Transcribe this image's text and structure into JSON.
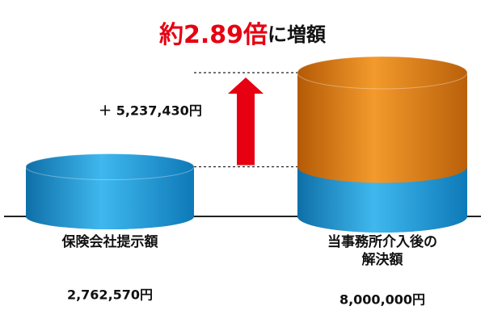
{
  "chart_data": {
    "type": "stacked-cylinder",
    "title_parts": [
      "約2.89倍",
      "に増額"
    ],
    "title_colors": [
      "#e60012",
      "#111111"
    ],
    "categories": [
      "保険会社提示額",
      "当事務所介入後の\n解決額"
    ],
    "series": [
      {
        "color": "#1b9ad6",
        "values": [
          2762570,
          2762570
        ]
      },
      {
        "color": "#e8830f",
        "values": [
          null,
          5237430
        ],
        "value_labels": [
          null,
          "＋ 5,237,430円"
        ]
      }
    ],
    "totals": [
      2762570,
      8000000
    ],
    "total_labels": [
      "2,762,570円",
      "8,000,000円"
    ],
    "annotation_color": "#e60012"
  }
}
